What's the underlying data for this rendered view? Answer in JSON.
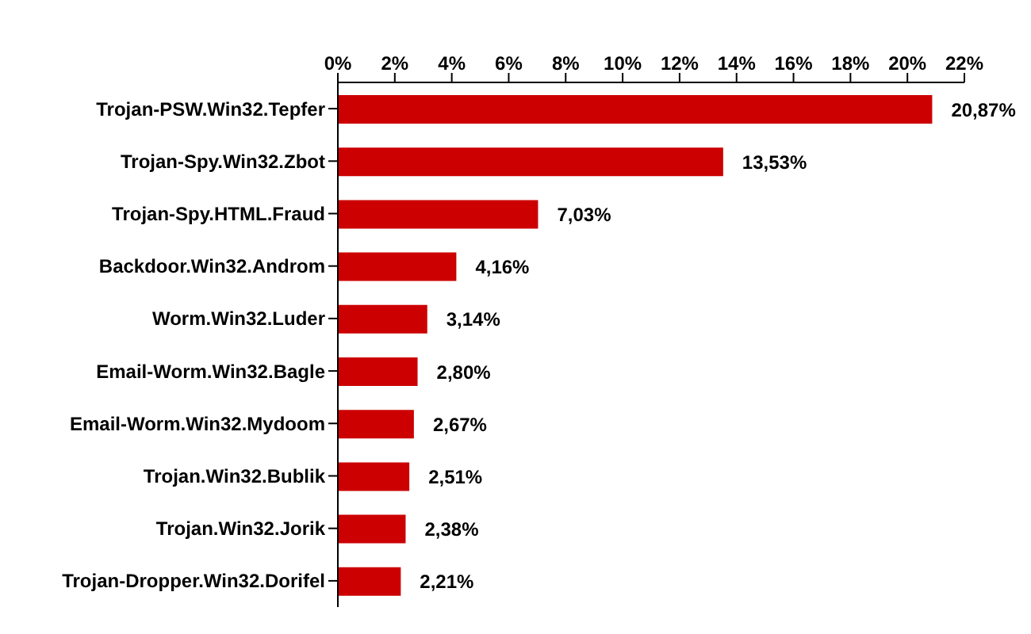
{
  "chart_data": {
    "type": "bar",
    "orientation": "horizontal",
    "categories": [
      "Trojan-PSW.Win32.Tepfer",
      "Trojan-Spy.Win32.Zbot",
      "Trojan-Spy.HTML.Fraud",
      "Backdoor.Win32.Androm",
      "Worm.Win32.Luder",
      "Email-Worm.Win32.Bagle",
      "Email-Worm.Win32.Mydoom",
      "Trojan.Win32.Bublik",
      "Trojan.Win32.Jorik",
      "Trojan-Dropper.Win32.Dorifel"
    ],
    "values": [
      20.87,
      13.53,
      7.03,
      4.16,
      3.14,
      2.8,
      2.67,
      2.51,
      2.38,
      2.21
    ],
    "value_labels": [
      "20,87%",
      "13,53%",
      "7,03%",
      "4,16%",
      "3,14%",
      "2,80%",
      "2,67%",
      "2,51%",
      "2,38%",
      "2,21%"
    ],
    "color": "#cc0000",
    "xlim": [
      0,
      22
    ],
    "xticks": [
      {
        "value": 0,
        "label": "0%"
      },
      {
        "value": 2,
        "label": "2%"
      },
      {
        "value": 4,
        "label": "4%"
      },
      {
        "value": 6,
        "label": "6%"
      },
      {
        "value": 8,
        "label": "8%"
      },
      {
        "value": 10,
        "label": "10%"
      },
      {
        "value": 12,
        "label": "12%"
      },
      {
        "value": 14,
        "label": "14%"
      },
      {
        "value": 16,
        "label": "16%"
      },
      {
        "value": 18,
        "label": "18%"
      },
      {
        "value": 20,
        "label": "20%"
      },
      {
        "value": 22,
        "label": "22%"
      }
    ],
    "grid": false,
    "legend": false
  }
}
